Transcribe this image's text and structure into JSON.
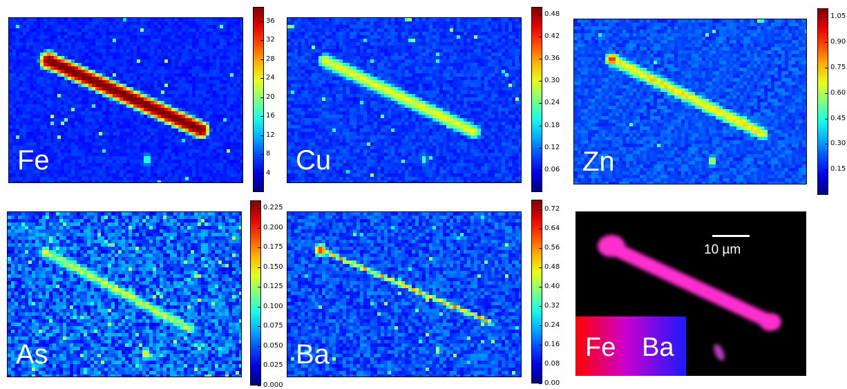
{
  "chart_data": [
    {
      "type": "heatmap",
      "element": "Fe",
      "colormap": "jet",
      "colorbar_ticks": [
        "4",
        "8",
        "12",
        "16",
        "20",
        "24",
        "28",
        "32",
        "36"
      ],
      "colorbar_range": [
        0,
        39
      ]
    },
    {
      "type": "heatmap",
      "element": "Cu",
      "colormap": "jet",
      "colorbar_ticks": [
        "0.06",
        "0.12",
        "0.18",
        "0.24",
        "0.30",
        "0.36",
        "0.42",
        "0.48"
      ],
      "colorbar_range": [
        0,
        0.5
      ]
    },
    {
      "type": "heatmap",
      "element": "Zn",
      "colormap": "jet",
      "colorbar_ticks": [
        "0.15",
        "0.30",
        "0.45",
        "0.60",
        "0.75",
        "0.90",
        "1.05"
      ],
      "colorbar_range": [
        0,
        1.1
      ]
    },
    {
      "type": "heatmap",
      "element": "As",
      "colormap": "jet",
      "colorbar_ticks": [
        "0.000",
        "0.025",
        "0.050",
        "0.075",
        "0.100",
        "0.125",
        "0.150",
        "0.175",
        "0.200",
        "0.225"
      ],
      "colorbar_range": [
        0,
        0.235
      ]
    },
    {
      "type": "heatmap",
      "element": "Ba",
      "colormap": "jet",
      "colorbar_ticks": [
        "0.00",
        "0.08",
        "0.16",
        "0.24",
        "0.32",
        "0.40",
        "0.48",
        "0.56",
        "0.64",
        "0.72"
      ],
      "colorbar_range": [
        0,
        0.76
      ]
    }
  ],
  "composite": {
    "legend_left": "Fe",
    "legend_right": "Ba",
    "legend_left_color": "#ff0000",
    "legend_right_color": "#1a1aff",
    "scale_bar_label": "10 µm"
  },
  "colors": {
    "background_low": "#1446dc",
    "composite_bg": "#000000",
    "composite_particle": "#ff2fcf"
  }
}
